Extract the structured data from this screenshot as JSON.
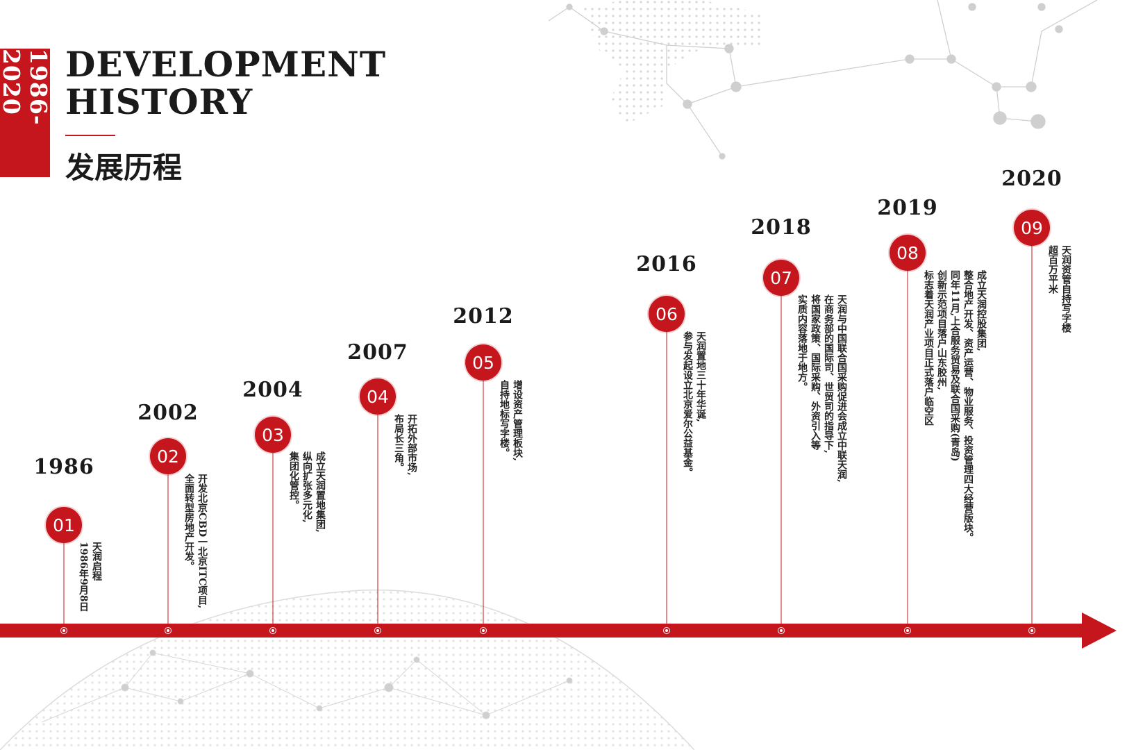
{
  "header": {
    "side_label": "1986-2020",
    "title_en_line1": "DEVELOPMENT",
    "title_en_line2": "HISTORY",
    "title_cn": "发展历程"
  },
  "colors": {
    "accent": "#c4161c",
    "text": "#1a1a1a",
    "background": "#ffffff"
  },
  "milestones": [
    {
      "num": "01",
      "year": "1986",
      "lines": [
        "天润启程",
        "1986年9月8日"
      ]
    },
    {
      "num": "02",
      "year": "2002",
      "lines": [
        "开发北京CBD一北京ITC项目,",
        "全面转型房地产开发。"
      ]
    },
    {
      "num": "03",
      "year": "2004",
      "lines": [
        "成立天润置地集团,",
        "纵向扩张多元化,",
        "集团化管控。"
      ]
    },
    {
      "num": "04",
      "year": "2007",
      "lines": [
        "开拓外部市场,",
        "布局长三角。"
      ]
    },
    {
      "num": "05",
      "year": "2012",
      "lines": [
        "增设资产管理板块,",
        "自持地标写字楼。"
      ]
    },
    {
      "num": "06",
      "year": "2016",
      "lines": [
        "天润置地三十年华诞,",
        "参与发起设立北京爱尔公益基金。"
      ]
    },
    {
      "num": "07",
      "year": "2018",
      "lines": [
        "天润与中国联合国采购促进会成立中联天润,",
        "在商务部的国际司、世贸司的指导下,",
        "将国家政策、国际采购、外资引入等",
        "实质内容落地于地方。"
      ]
    },
    {
      "num": "08",
      "year": "2019",
      "lines": [
        "成立天润控股集团,",
        "整合地产开发、资产运营、物业服务、投资管理四大经营版块。",
        "同年11月,上合服务贸易及联合国采购(青岛)",
        "创新示范项目落户山东胶州,",
        "标志着天润产业项目正式落户临空区"
      ]
    },
    {
      "num": "09",
      "year": "2020",
      "lines": [
        "天润资管自持写字楼",
        "超百万平米"
      ]
    }
  ]
}
